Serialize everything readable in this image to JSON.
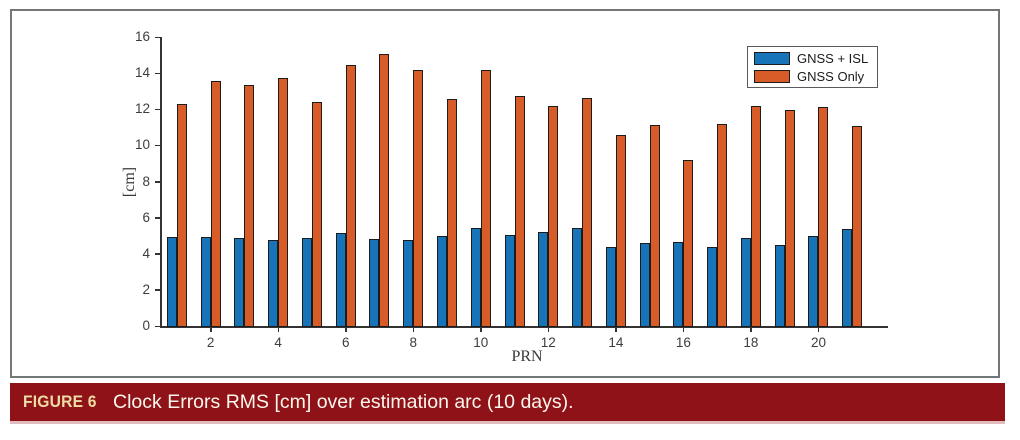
{
  "figure": {
    "caption_label": "FIGURE 6",
    "caption_text": "Clock Errors RMS [cm] over estimation arc (10 days)."
  },
  "colors": {
    "series_blue": "#1874b8",
    "series_orange": "#d85c28",
    "bar_edge": "#1c1c1c",
    "axis": "#333333",
    "tick_label": "#3d3d3d",
    "panel_border": "#74777a",
    "legend_border": "#5a5a5a",
    "caption_bg": "#8e1218",
    "caption_label_color": "#eedca6",
    "caption_text_color": "#fbf7ec"
  },
  "chart_data": {
    "type": "bar",
    "title": "",
    "xlabel": "PRN",
    "ylabel": "[cm]",
    "categories": [
      1,
      2,
      3,
      4,
      5,
      6,
      7,
      8,
      9,
      10,
      11,
      12,
      13,
      14,
      15,
      16,
      17,
      18,
      19,
      20,
      21
    ],
    "series": [
      {
        "name": "GNSS + ISL",
        "color": "#1874b8",
        "values": [
          4.95,
          4.95,
          4.85,
          4.75,
          4.85,
          5.15,
          4.8,
          4.75,
          5.0,
          5.4,
          5.05,
          5.2,
          5.45,
          4.35,
          4.6,
          4.65,
          4.4,
          4.85,
          4.5,
          5.0,
          5.35
        ]
      },
      {
        "name": "GNSS Only",
        "color": "#d85c28",
        "values": [
          12.3,
          13.55,
          13.35,
          13.75,
          12.4,
          14.45,
          15.05,
          14.15,
          12.55,
          14.2,
          12.75,
          12.2,
          12.6,
          10.55,
          11.15,
          9.2,
          11.2,
          12.2,
          11.95,
          12.15,
          11.05
        ]
      }
    ],
    "ylim": [
      0,
      16
    ],
    "xlim": [
      0.5,
      22
    ],
    "yticks": [
      0,
      2,
      4,
      6,
      8,
      10,
      12,
      14,
      16
    ],
    "xticks": [
      2,
      4,
      6,
      8,
      10,
      12,
      14,
      16,
      18,
      20
    ],
    "grid": false,
    "legend_position": "inside-top-right",
    "bar_group": "grouped"
  }
}
